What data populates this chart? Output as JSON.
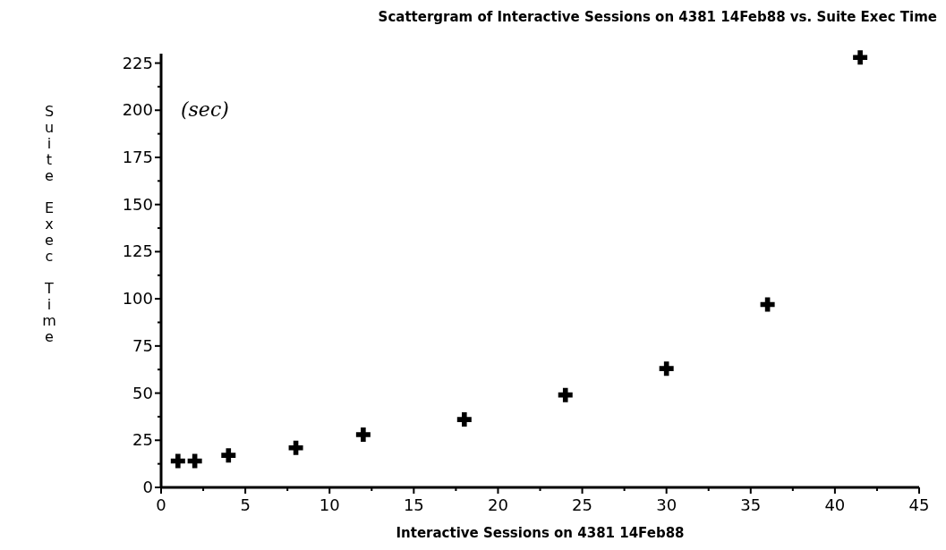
{
  "chart_data": {
    "type": "scatter",
    "title": "Scattergram of Interactive Sessions on 4381  14Feb88 vs. Suite Exec Time",
    "xlabel": "Interactive Sessions on 4381  14Feb88",
    "ylabel": "Suite Exec Time",
    "annotations": [
      "(sec)"
    ],
    "x": [
      1,
      2,
      4,
      8,
      12,
      18,
      24,
      30,
      36,
      41.5
    ],
    "values": [
      14,
      14,
      17,
      21,
      28,
      36,
      49,
      63,
      97,
      228
    ],
    "color": "#000000",
    "marker": "cross",
    "grid": false,
    "xlim": [
      0,
      45
    ],
    "xticks": [
      0,
      {
        "value": 2.5,
        "label": null
      },
      5,
      {
        "value": 7.5,
        "label": null
      },
      10,
      {
        "value": 12.5,
        "label": null
      },
      15,
      {
        "value": 17.5,
        "label": null
      },
      20,
      {
        "value": 22.5,
        "label": null
      },
      25,
      {
        "value": 27.5,
        "label": null
      },
      30,
      {
        "value": 32.5,
        "label": null
      },
      35,
      {
        "value": 37.5,
        "label": null
      },
      40,
      {
        "value": 42.5,
        "label": null
      },
      45
    ],
    "ylim": [
      0,
      230
    ],
    "yticks": [
      0,
      {
        "value": 12.5,
        "label": null
      },
      25,
      {
        "value": 37.5,
        "label": null
      },
      50,
      {
        "value": 62.5,
        "label": null
      },
      75,
      {
        "value": 87.5,
        "label": null
      },
      100,
      {
        "value": 112.5,
        "label": null
      },
      125,
      {
        "value": 137.5,
        "label": null
      },
      150,
      {
        "value": 162.5,
        "label": null
      },
      175,
      {
        "value": 187.5,
        "label": null
      },
      200,
      {
        "value": 212.5,
        "label": null
      },
      225
    ]
  }
}
